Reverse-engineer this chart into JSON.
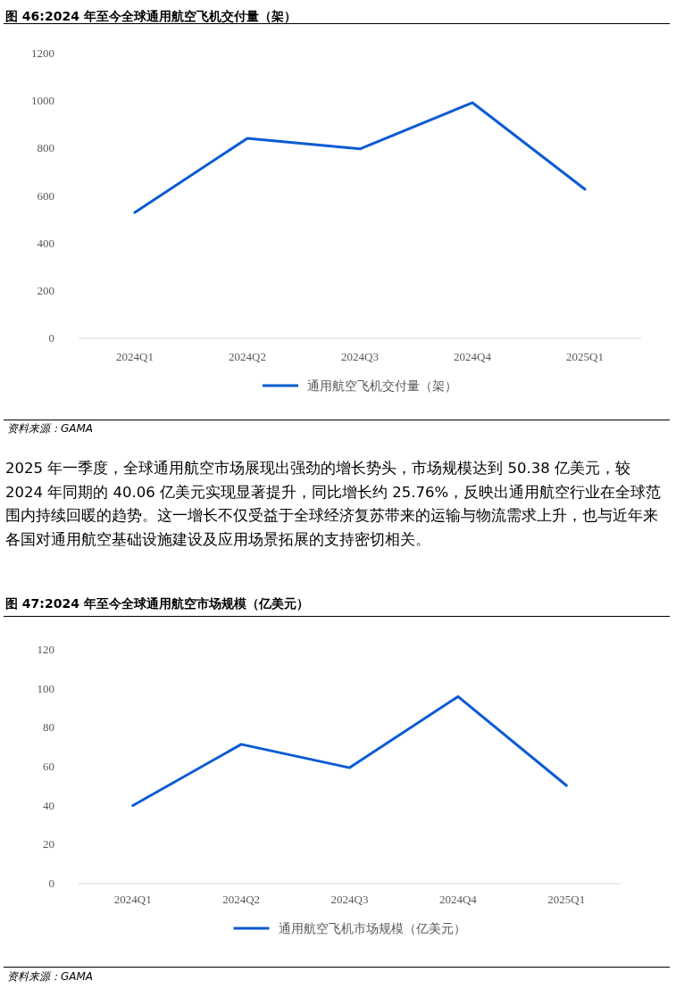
{
  "chart_data": [
    {
      "type": "line",
      "title": "图 46:2024 年至今全球通用航空飞机交付量（架）",
      "categories": [
        "2024Q1",
        "2024Q2",
        "2024Q3",
        "2024Q4",
        "2025Q1"
      ],
      "series": [
        {
          "name": "通用航空飞机交付量（架）",
          "color": "#0b5bd3",
          "values": [
            530,
            843,
            798,
            993,
            628
          ]
        }
      ],
      "ylim": [
        0,
        1200
      ],
      "yticks": [
        0,
        200,
        400,
        600,
        800,
        1000,
        1200
      ],
      "grid": false,
      "legend": "bottom",
      "marker": "none",
      "annotations": [
        "资料来源：GAMA",
        "2025 年一季度，全球通用航空市场展现出强劲的增长势头，市场规模达到 50.38 亿美元，较 2024 年同期的 40.06 亿美元实现显著提升，同比增长约 25.76%，反映出通用航空行业在全球范围内持续回暖的趋势。这一增长不仅受益于全球经济复苏带来的运输与物流需求上升，也与近年来各国对通用航空基础设施建设及应用场景拓展的支持密切相关。"
      ]
    },
    {
      "type": "line",
      "title": "图 47:2024 年至今全球通用航空市场规模（亿美元）",
      "categories": [
        "2024Q1",
        "2024Q2",
        "2024Q3",
        "2024Q4",
        "2025Q1"
      ],
      "series": [
        {
          "name": "通用航空飞机市场规模（亿美元）",
          "color": "#0b5bd3",
          "values": [
            40.06,
            71.5,
            59.5,
            96,
            50.38
          ]
        }
      ],
      "ylim": [
        0,
        120
      ],
      "yticks": [
        0,
        20,
        40,
        60,
        80,
        100,
        120
      ],
      "grid": false,
      "legend": "bottom",
      "marker": "none",
      "annotations": [
        "资料来源：GAMA"
      ]
    }
  ]
}
